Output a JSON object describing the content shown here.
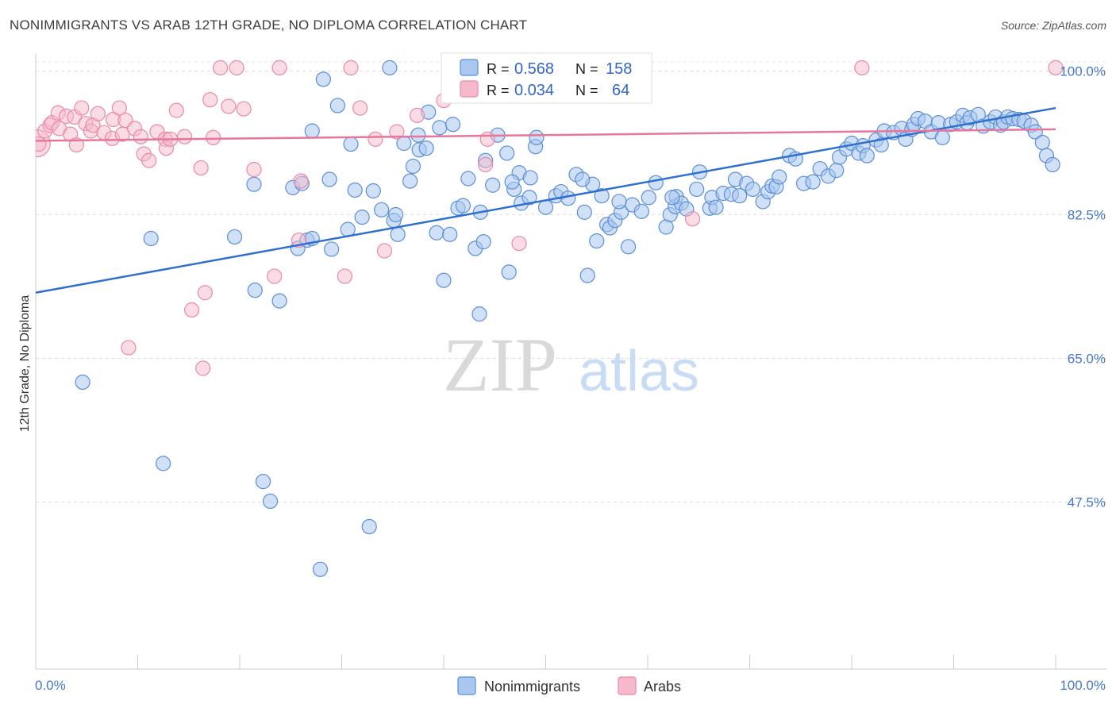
{
  "header": {
    "title": "NONIMMIGRANTS VS ARAB 12TH GRADE, NO DIPLOMA CORRELATION CHART",
    "source": "Source: ZipAtlas.com"
  },
  "watermark": {
    "zip": "ZIP",
    "atlas": "atlas"
  },
  "colors": {
    "blue_fill": "#a9c7ef",
    "blue_stroke": "#5b8fd6",
    "blue_line": "#2f6fd0",
    "pink_fill": "#f6b9cc",
    "pink_stroke": "#e88aa8",
    "pink_line": "#e8769b",
    "tick_text": "#4477cc"
  },
  "chart_data": {
    "type": "scatter",
    "title": "NONIMMIGRANTS VS ARAB 12TH GRADE, NO DIPLOMA CORRELATION CHART",
    "xlabel": "",
    "ylabel": "12th Grade, No Diploma",
    "xlim": [
      0,
      100
    ],
    "ylim": [
      32,
      102
    ],
    "x_tick_labels": [
      "0.0%",
      "100.0%"
    ],
    "y_ticks": [
      47.5,
      65.0,
      82.5,
      100.0
    ],
    "y_tick_labels": [
      "47.5%",
      "65.0%",
      "82.5%",
      "100.0%"
    ],
    "grid": true,
    "legend_top": [
      {
        "series": "Nonimmigrants",
        "r_label": "R =",
        "r_value": "0.568",
        "n_label": "N =",
        "n_value": "158"
      },
      {
        "series": "Arabs",
        "r_label": "R =",
        "r_value": "0.034",
        "n_label": "N =",
        "n_value": "64"
      }
    ],
    "legend_bottom": [
      "Nonimmigrants",
      "Arabs"
    ],
    "series": [
      {
        "name": "Nonimmigrants",
        "trend": {
          "x": [
            0,
            100
          ],
          "y": [
            73.0,
            95.5
          ]
        },
        "points": [
          [
            4.6,
            62.1
          ],
          [
            11.3,
            79.6
          ],
          [
            12.5,
            52.2
          ],
          [
            19.5,
            79.8
          ],
          [
            21.4,
            86.2
          ],
          [
            21.5,
            73.3
          ],
          [
            22.3,
            50.0
          ],
          [
            23.0,
            47.6
          ],
          [
            23.9,
            72.0
          ],
          [
            25.2,
            85.8
          ],
          [
            25.7,
            78.4
          ],
          [
            26.1,
            86.3
          ],
          [
            26.6,
            79.4
          ],
          [
            27.1,
            92.7
          ],
          [
            27.1,
            79.6
          ],
          [
            27.9,
            39.3
          ],
          [
            28.2,
            99.0
          ],
          [
            28.8,
            86.8
          ],
          [
            29.0,
            78.3
          ],
          [
            29.6,
            95.8
          ],
          [
            30.6,
            80.7
          ],
          [
            30.9,
            91.1
          ],
          [
            31.3,
            85.5
          ],
          [
            32.0,
            82.2
          ],
          [
            32.7,
            44.5
          ],
          [
            33.1,
            85.4
          ],
          [
            33.9,
            83.1
          ],
          [
            34.7,
            100.4
          ],
          [
            35.1,
            81.8
          ],
          [
            35.3,
            82.5
          ],
          [
            35.5,
            80.1
          ],
          [
            36.1,
            91.2
          ],
          [
            36.7,
            86.6
          ],
          [
            37.5,
            92.2
          ],
          [
            37.6,
            90.4
          ],
          [
            38.3,
            90.6
          ],
          [
            38.5,
            95.0
          ],
          [
            39.3,
            80.3
          ],
          [
            39.6,
            93.1
          ],
          [
            40.0,
            74.5
          ],
          [
            40.6,
            80.1
          ],
          [
            40.9,
            93.5
          ],
          [
            41.4,
            83.3
          ],
          [
            41.9,
            83.6
          ],
          [
            42.4,
            86.9
          ],
          [
            43.1,
            78.4
          ],
          [
            43.5,
            70.4
          ],
          [
            43.6,
            82.8
          ],
          [
            43.9,
            79.2
          ],
          [
            44.1,
            89.1
          ],
          [
            45.3,
            92.2
          ],
          [
            46.2,
            90.0
          ],
          [
            46.4,
            75.5
          ],
          [
            46.9,
            85.6
          ],
          [
            47.4,
            87.6
          ],
          [
            47.6,
            83.9
          ],
          [
            48.5,
            87.0
          ],
          [
            49.0,
            90.8
          ],
          [
            49.1,
            91.9
          ],
          [
            50.0,
            83.4
          ],
          [
            51.0,
            84.8
          ],
          [
            51.5,
            85.3
          ],
          [
            52.2,
            84.5
          ],
          [
            53.0,
            87.4
          ],
          [
            53.8,
            82.8
          ],
          [
            54.1,
            75.1
          ],
          [
            54.6,
            86.2
          ],
          [
            55.0,
            79.3
          ],
          [
            56.0,
            81.3
          ],
          [
            56.3,
            80.9
          ],
          [
            56.8,
            81.8
          ],
          [
            57.4,
            82.8
          ],
          [
            58.1,
            78.6
          ],
          [
            58.5,
            83.7
          ],
          [
            59.4,
            82.9
          ],
          [
            60.1,
            84.6
          ],
          [
            61.8,
            81.0
          ],
          [
            62.2,
            82.5
          ],
          [
            62.7,
            83.5
          ],
          [
            62.8,
            84.7
          ],
          [
            63.3,
            83.9
          ],
          [
            63.8,
            83.2
          ],
          [
            64.8,
            85.6
          ],
          [
            65.1,
            87.7
          ],
          [
            66.1,
            83.3
          ],
          [
            66.3,
            84.6
          ],
          [
            66.7,
            83.4
          ],
          [
            67.4,
            85.1
          ],
          [
            68.2,
            85.0
          ],
          [
            68.6,
            86.8
          ],
          [
            69.0,
            84.8
          ],
          [
            69.7,
            86.3
          ],
          [
            70.3,
            85.6
          ],
          [
            71.3,
            84.1
          ],
          [
            71.8,
            85.3
          ],
          [
            72.2,
            86.0
          ],
          [
            72.6,
            85.9
          ],
          [
            72.9,
            87.1
          ],
          [
            73.9,
            89.7
          ],
          [
            74.5,
            89.3
          ],
          [
            75.3,
            86.3
          ],
          [
            76.2,
            86.5
          ],
          [
            76.9,
            88.1
          ],
          [
            77.7,
            87.2
          ],
          [
            78.5,
            87.9
          ],
          [
            78.8,
            89.5
          ],
          [
            79.5,
            90.5
          ],
          [
            80.0,
            91.2
          ],
          [
            80.7,
            90.0
          ],
          [
            81.1,
            90.9
          ],
          [
            81.5,
            89.7
          ],
          [
            82.4,
            91.6
          ],
          [
            82.9,
            91.0
          ],
          [
            83.2,
            92.7
          ],
          [
            84.1,
            92.5
          ],
          [
            84.9,
            93.0
          ],
          [
            85.3,
            91.7
          ],
          [
            85.9,
            92.9
          ],
          [
            86.1,
            93.5
          ],
          [
            86.5,
            94.2
          ],
          [
            87.2,
            93.9
          ],
          [
            87.8,
            92.6
          ],
          [
            88.5,
            93.7
          ],
          [
            88.9,
            91.9
          ],
          [
            89.7,
            93.5
          ],
          [
            90.3,
            93.8
          ],
          [
            90.9,
            94.6
          ],
          [
            91.3,
            93.7
          ],
          [
            91.6,
            94.3
          ],
          [
            92.4,
            94.7
          ],
          [
            92.9,
            93.3
          ],
          [
            93.6,
            93.8
          ],
          [
            94.1,
            94.4
          ],
          [
            94.6,
            93.4
          ],
          [
            94.9,
            93.8
          ],
          [
            95.3,
            94.4
          ],
          [
            95.8,
            94.2
          ],
          [
            96.4,
            94.1
          ],
          [
            96.9,
            93.9
          ],
          [
            97.6,
            93.4
          ],
          [
            98.0,
            92.6
          ],
          [
            98.7,
            91.3
          ],
          [
            99.1,
            89.7
          ],
          [
            99.7,
            88.6
          ],
          [
            37.0,
            88.4
          ],
          [
            53.6,
            86.8
          ],
          [
            60.8,
            86.4
          ],
          [
            44.8,
            86.1
          ],
          [
            46.7,
            86.5
          ],
          [
            48.4,
            84.6
          ],
          [
            55.5,
            84.8
          ],
          [
            57.2,
            84.1
          ],
          [
            62.4,
            84.6
          ]
        ]
      },
      {
        "name": "Arabs",
        "trend": {
          "x": [
            0,
            100
          ],
          "y": [
            91.5,
            92.9
          ]
        },
        "points": [
          [
            0.1,
            91.2
          ],
          [
            0.9,
            92.7
          ],
          [
            1.4,
            93.4
          ],
          [
            1.6,
            93.7
          ],
          [
            2.2,
            94.9
          ],
          [
            2.3,
            93.0
          ],
          [
            3.0,
            94.5
          ],
          [
            3.4,
            92.3
          ],
          [
            3.8,
            94.4
          ],
          [
            4.0,
            91.0
          ],
          [
            4.5,
            95.5
          ],
          [
            4.9,
            93.6
          ],
          [
            5.4,
            92.7
          ],
          [
            5.6,
            93.4
          ],
          [
            6.1,
            94.8
          ],
          [
            6.7,
            92.5
          ],
          [
            7.5,
            91.8
          ],
          [
            7.6,
            94.1
          ],
          [
            8.2,
            95.5
          ],
          [
            8.5,
            92.3
          ],
          [
            8.8,
            94.0
          ],
          [
            9.7,
            93.0
          ],
          [
            10.3,
            92.0
          ],
          [
            10.6,
            89.9
          ],
          [
            11.1,
            89.1
          ],
          [
            11.9,
            92.6
          ],
          [
            12.7,
            91.7
          ],
          [
            12.8,
            90.6
          ],
          [
            13.2,
            91.7
          ],
          [
            13.8,
            95.2
          ],
          [
            14.6,
            92.0
          ],
          [
            15.3,
            70.9
          ],
          [
            16.2,
            88.2
          ],
          [
            16.6,
            73.0
          ],
          [
            17.1,
            96.5
          ],
          [
            17.4,
            91.9
          ],
          [
            18.1,
            100.4
          ],
          [
            18.9,
            95.7
          ],
          [
            19.7,
            100.4
          ],
          [
            20.4,
            95.4
          ],
          [
            21.4,
            88.0
          ],
          [
            23.4,
            75.0
          ],
          [
            23.9,
            100.4
          ],
          [
            25.8,
            79.4
          ],
          [
            26.0,
            86.6
          ],
          [
            30.3,
            75.0
          ],
          [
            30.9,
            100.4
          ],
          [
            31.8,
            95.5
          ],
          [
            33.3,
            91.7
          ],
          [
            34.2,
            78.1
          ],
          [
            35.4,
            92.6
          ],
          [
            37.4,
            94.6
          ],
          [
            40.0,
            96.4
          ],
          [
            44.1,
            88.6
          ],
          [
            44.3,
            91.7
          ],
          [
            47.4,
            79.0
          ],
          [
            50.1,
            100.0
          ],
          [
            56.9,
            100.4
          ],
          [
            64.4,
            82.0
          ],
          [
            81.0,
            100.4
          ],
          [
            100.0,
            100.4
          ],
          [
            9.1,
            66.3
          ],
          [
            16.4,
            63.8
          ],
          [
            0.3,
            91.1
          ]
        ]
      }
    ]
  }
}
